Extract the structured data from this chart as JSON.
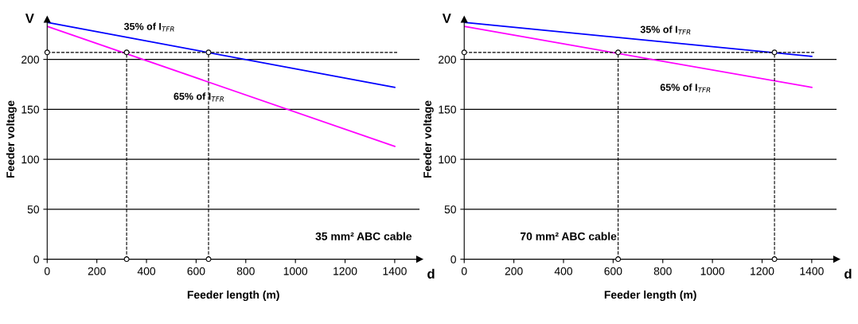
{
  "chart_data": [
    {
      "type": "line",
      "xlabel": "Feeder length (m)",
      "ylabel": "Feeder voltage",
      "xlim": [
        0,
        1500
      ],
      "ylim": [
        0,
        240
      ],
      "xticks": [
        0,
        200,
        400,
        600,
        800,
        1000,
        1200,
        1400
      ],
      "yticks": [
        0,
        50,
        100,
        150,
        200
      ],
      "grid": "y",
      "legend": false,
      "series": [
        {
          "color": "#0000ff",
          "x": [
            0,
            1400
          ],
          "values": [
            237,
            172
          ]
        },
        {
          "color": "#ff00ff",
          "x": [
            0,
            1400
          ],
          "values": [
            233,
            113
          ]
        },
        {
          "type": "scatter",
          "marker": "circle",
          "color": "#ffffff",
          "x": [
            0,
            320,
            320,
            650,
            650
          ],
          "values": [
            207,
            207,
            0,
            207,
            0
          ]
        }
      ],
      "ref_lines": [
        {
          "axis": "y",
          "value": 207,
          "line_style": "dashed"
        },
        {
          "axis": "x",
          "value": 320,
          "line_style": "dashed"
        },
        {
          "axis": "x",
          "value": 650,
          "line_style": "dashed"
        }
      ],
      "annotations": [
        {
          "text": "35% of I$_{TFR}$",
          "x": 300,
          "y": 223
        },
        {
          "text": "65% of I$_{TFR}$",
          "x": 500,
          "y": 190
        },
        "35 mm² ABC cable",
        "V",
        "d"
      ]
    },
    {
      "type": "line",
      "xlabel": "Feeder length (m)",
      "ylabel": "Feeder voltage",
      "xlim": [
        0,
        1500
      ],
      "ylim": [
        0,
        240
      ],
      "xticks": [
        0,
        200,
        400,
        600,
        800,
        1000,
        1200,
        1400
      ],
      "yticks": [
        0,
        50,
        100,
        150,
        200
      ],
      "grid": "y",
      "legend": false,
      "series": [
        {
          "color": "#0000ff",
          "x": [
            0,
            1400
          ],
          "values": [
            237,
            203
          ]
        },
        {
          "color": "#ff00ff",
          "x": [
            0,
            1400
          ],
          "values": [
            233,
            172
          ]
        },
        {
          "type": "scatter",
          "marker": "circle",
          "color": "#ffffff",
          "x": [
            0,
            620,
            620,
            1250,
            1250
          ],
          "values": [
            207,
            207,
            0,
            207,
            0
          ]
        }
      ],
      "ref_lines": [
        {
          "axis": "y",
          "value": 207,
          "line_style": "dashed"
        },
        {
          "axis": "x",
          "value": 620,
          "line_style": "dashed"
        },
        {
          "axis": "x",
          "value": 1250,
          "line_style": "dashed"
        }
      ],
      "annotations": [
        {
          "text": "35% of I$_{TFR}$",
          "x": 700,
          "y": 220
        },
        {
          "text": "65% of I$_{TFR}$",
          "x": 780,
          "y": 199
        },
        "70 mm² ABC cable",
        "V",
        "d"
      ]
    }
  ]
}
